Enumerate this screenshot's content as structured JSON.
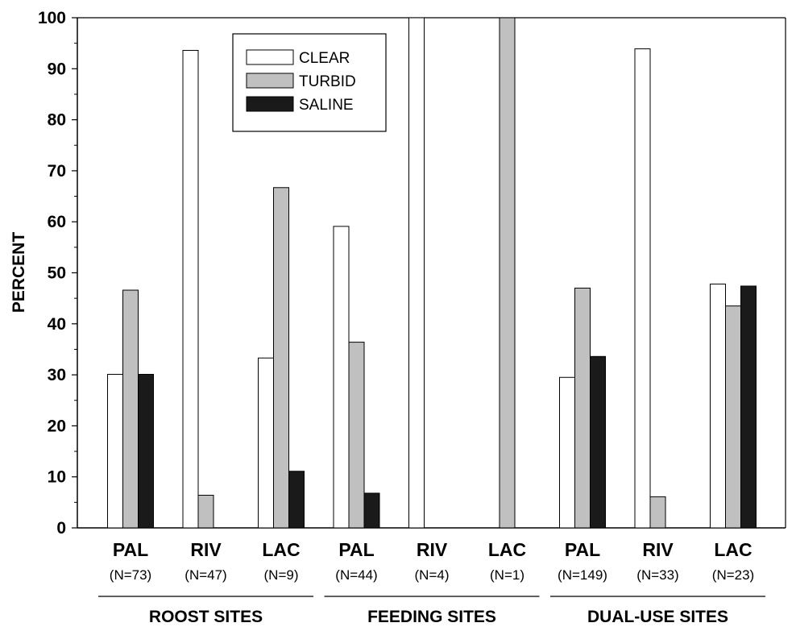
{
  "chart_data": {
    "type": "bar",
    "title": "",
    "xlabel": "",
    "ylabel": "PERCENT",
    "ylim": [
      0,
      100
    ],
    "yticks": [
      0,
      10,
      20,
      30,
      40,
      50,
      60,
      70,
      80,
      90,
      100
    ],
    "grid": false,
    "legend_position": "top-left",
    "categories": [
      {
        "label": "PAL",
        "n": "(N=73)",
        "group": "ROOST SITES"
      },
      {
        "label": "RIV",
        "n": "(N=47)",
        "group": "ROOST SITES"
      },
      {
        "label": "LAC",
        "n": "(N=9)",
        "group": "ROOST SITES"
      },
      {
        "label": "PAL",
        "n": "(N=44)",
        "group": "FEEDING SITES"
      },
      {
        "label": "RIV",
        "n": "(N=4)",
        "group": "FEEDING SITES"
      },
      {
        "label": "LAC",
        "n": "(N=1)",
        "group": "FEEDING SITES"
      },
      {
        "label": "PAL",
        "n": "(N=149)",
        "group": "DUAL-USE SITES"
      },
      {
        "label": "RIV",
        "n": "(N=33)",
        "group": "DUAL-USE SITES"
      },
      {
        "label": "LAC",
        "n": "(N=23)",
        "group": "DUAL-USE SITES"
      }
    ],
    "groups": [
      "ROOST SITES",
      "FEEDING SITES",
      "DUAL-USE SITES"
    ],
    "series": [
      {
        "name": "CLEAR",
        "color": "#ffffff",
        "values": [
          30.1,
          93.6,
          33.3,
          59.1,
          100,
          0,
          29.5,
          93.9,
          47.8
        ]
      },
      {
        "name": "TURBID",
        "color": "#c0c0c0",
        "values": [
          46.6,
          6.4,
          66.7,
          36.4,
          0,
          100,
          47.0,
          6.1,
          43.5
        ]
      },
      {
        "name": "SALINE",
        "color": "#1a1a1a",
        "values": [
          30.1,
          0,
          11.1,
          6.8,
          0,
          0,
          33.6,
          0,
          47.4
        ]
      }
    ]
  }
}
